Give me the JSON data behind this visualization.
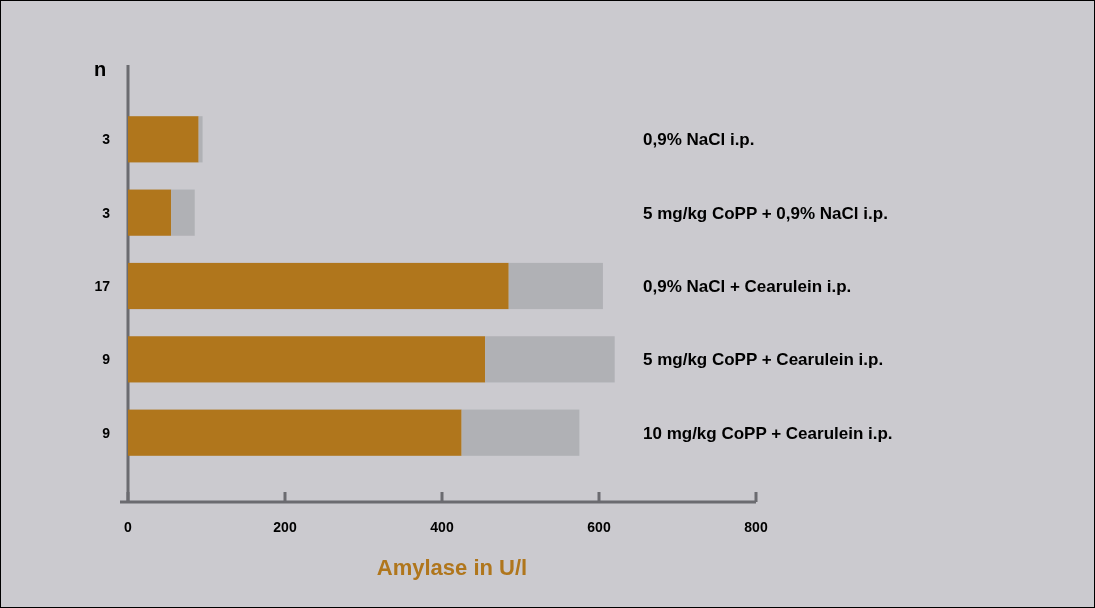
{
  "chart_data": {
    "type": "bar",
    "orientation": "horizontal",
    "stacked": true,
    "ylabel": "n",
    "xlabel": "Amylase in U/l",
    "categories": [
      "3",
      "3",
      "17",
      "9",
      "9"
    ],
    "series": [
      {
        "color": "#b0761c",
        "values": [
          90,
          55,
          485,
          455,
          425
        ]
      },
      {
        "color": "#b0b1b5",
        "values": [
          5,
          30,
          120,
          165,
          150
        ]
      }
    ],
    "xlim": [
      0,
      800
    ],
    "xticks": [
      0,
      200,
      400,
      600,
      800
    ],
    "grid": false,
    "annotations": [
      "0,9% NaCl i.p.",
      "5 mg/kg CoPP + 0,9% NaCl i.p.",
      "0,9% NaCl + Cearulein i.p.",
      "5 mg/kg CoPP + Cearulein i.p.",
      "10 mg/kg CoPP + Cearulein i.p."
    ]
  }
}
